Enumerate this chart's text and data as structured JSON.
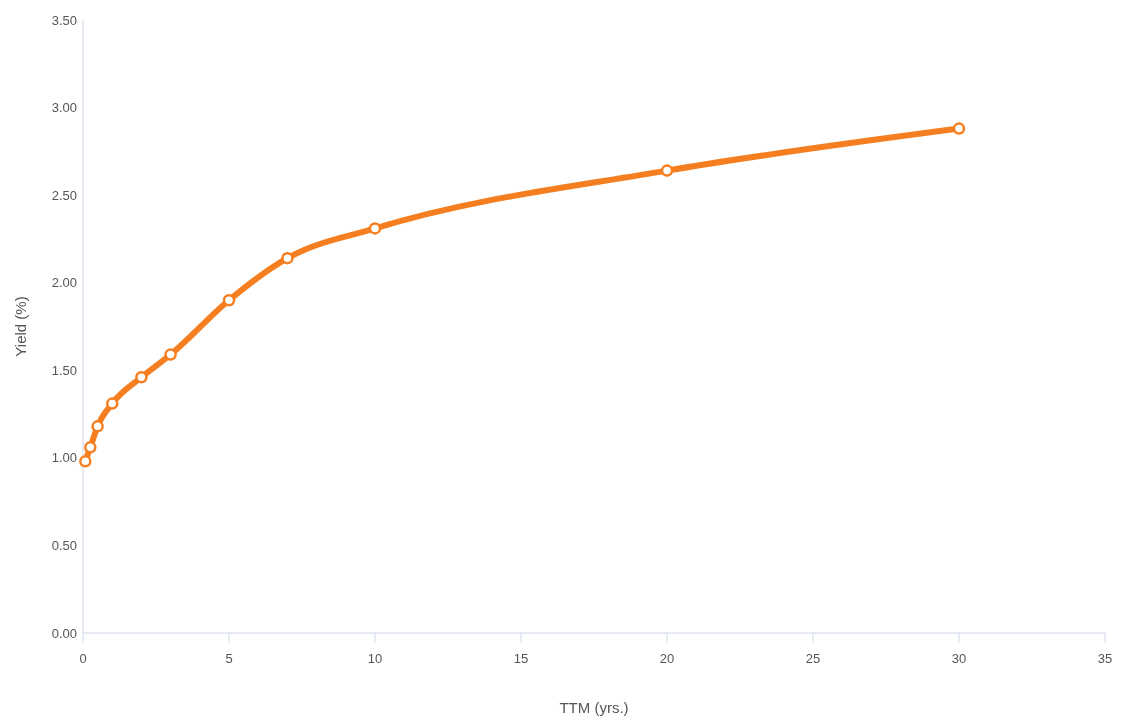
{
  "chart_data": {
    "type": "line",
    "xlabel": "TTM (yrs.)",
    "ylabel": "Yield (%)",
    "x": [
      0.08,
      0.25,
      0.5,
      1,
      2,
      3,
      5,
      7,
      10,
      20,
      30
    ],
    "series": [
      {
        "color": "#f57f20",
        "values": [
          0.98,
          1.06,
          1.18,
          1.31,
          1.46,
          1.59,
          1.9,
          2.14,
          2.31,
          2.64,
          2.88
        ]
      }
    ],
    "xlim": [
      0,
      35
    ],
    "xticks": [
      0,
      5,
      10,
      15,
      20,
      25,
      30,
      35
    ],
    "ylim": [
      0,
      3.5
    ],
    "yticks": [
      {
        "value": 0,
        "label": "0.00"
      },
      {
        "value": 0.5,
        "label": "0.50"
      },
      {
        "value": 1,
        "label": "1.00"
      },
      {
        "value": 1.5,
        "label": "1.50"
      },
      {
        "value": 2,
        "label": "2.00"
      },
      {
        "value": 2.5,
        "label": "2.50"
      },
      {
        "value": 3,
        "label": "3.00"
      },
      {
        "value": 3.5,
        "label": "3.50"
      }
    ],
    "marker": "circle",
    "grid": false
  }
}
